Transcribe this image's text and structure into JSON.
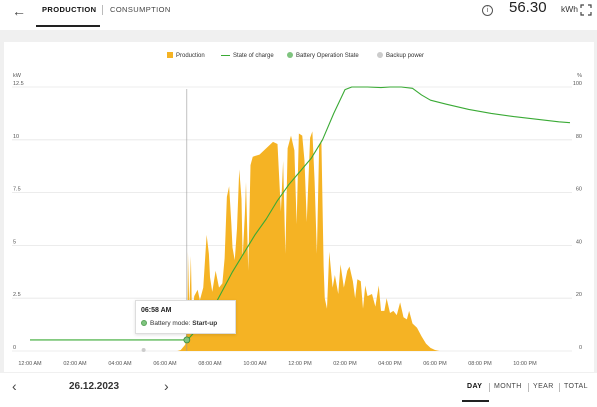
{
  "header": {
    "tabs": [
      {
        "label": "PRODUCTION",
        "active": true
      },
      {
        "label": "CONSUMPTION",
        "active": false
      }
    ],
    "info_icon": "info-icon",
    "total_value": "56.30",
    "total_unit": "kWh"
  },
  "legend": [
    {
      "label": "Production",
      "color": "#f5b324",
      "shape": "square"
    },
    {
      "label": "State of charge",
      "color": "#3aaa35",
      "shape": "line"
    },
    {
      "label": "Battery Operation State",
      "color": "#7fc47f",
      "shape": "dot"
    },
    {
      "label": "Backup power",
      "color": "#cccccc",
      "shape": "dot"
    }
  ],
  "tooltip": {
    "time": "06:58 AM",
    "label": "Battery mode:",
    "value": "Start-up"
  },
  "chart_data": {
    "type": "area",
    "left_axis": {
      "unit": "kW",
      "ticks": [
        "12.5",
        "10",
        "7.5",
        "5",
        "2.5",
        "0"
      ],
      "range": [
        0,
        12.5
      ]
    },
    "right_axis": {
      "unit": "%",
      "ticks": [
        "100",
        "80",
        "60",
        "40",
        "20",
        "0"
      ],
      "range": [
        0,
        100
      ]
    },
    "x_ticks": [
      "12:00 AM",
      "02:00 AM",
      "04:00 AM",
      "06:00 AM",
      "08:00 AM",
      "10:00 AM",
      "12:00 PM",
      "02:00 PM",
      "04:00 PM",
      "06:00 PM",
      "08:00 PM",
      "10:00 PM"
    ],
    "x_range_hours": [
      0,
      24
    ],
    "production_color": "#f5b324",
    "soc_color": "#3aaa35",
    "gridlines": true,
    "cursor_hour": 6.97,
    "series": [
      {
        "name": "Production",
        "unit": "kW",
        "points": [
          [
            6.55,
            0
          ],
          [
            6.7,
            0.05
          ],
          [
            6.9,
            0.3
          ],
          [
            7.0,
            1.5
          ],
          [
            7.02,
            4.7
          ],
          [
            7.08,
            2.0
          ],
          [
            7.15,
            4.5
          ],
          [
            7.2,
            1.6
          ],
          [
            7.3,
            2.6
          ],
          [
            7.45,
            2.9
          ],
          [
            7.55,
            2.4
          ],
          [
            7.7,
            3.0
          ],
          [
            7.85,
            5.5
          ],
          [
            7.95,
            4.6
          ],
          [
            8.0,
            3.5
          ],
          [
            8.1,
            2.8
          ],
          [
            8.25,
            3.8
          ],
          [
            8.4,
            3.0
          ],
          [
            8.55,
            3.2
          ],
          [
            8.65,
            4.4
          ],
          [
            8.75,
            7.3
          ],
          [
            8.85,
            7.8
          ],
          [
            8.95,
            6.0
          ],
          [
            9.0,
            4.9
          ],
          [
            9.1,
            4.3
          ],
          [
            9.2,
            5.8
          ],
          [
            9.3,
            8.6
          ],
          [
            9.4,
            7.2
          ],
          [
            9.45,
            4.4
          ],
          [
            9.55,
            6.5
          ],
          [
            9.6,
            8.0
          ],
          [
            9.7,
            3.8
          ],
          [
            9.8,
            8.8
          ],
          [
            9.9,
            9.2
          ],
          [
            10.2,
            9.3
          ],
          [
            10.5,
            9.6
          ],
          [
            10.8,
            9.9
          ],
          [
            11.0,
            9.8
          ],
          [
            11.15,
            6.6
          ],
          [
            11.25,
            9.0
          ],
          [
            11.35,
            4.6
          ],
          [
            11.45,
            9.6
          ],
          [
            11.6,
            10.2
          ],
          [
            11.75,
            9.5
          ],
          [
            11.85,
            6.0
          ],
          [
            11.95,
            10.3
          ],
          [
            12.1,
            10.2
          ],
          [
            12.2,
            9.0
          ],
          [
            12.3,
            6.1
          ],
          [
            12.45,
            10.1
          ],
          [
            12.55,
            10.4
          ],
          [
            12.65,
            8.0
          ],
          [
            12.75,
            4.6
          ],
          [
            12.85,
            9.7
          ],
          [
            12.95,
            10.0
          ],
          [
            13.05,
            4.0
          ],
          [
            13.1,
            2.5
          ],
          [
            13.2,
            2.0
          ],
          [
            13.3,
            4.7
          ],
          [
            13.45,
            3.0
          ],
          [
            13.55,
            3.6
          ],
          [
            13.7,
            2.7
          ],
          [
            13.8,
            4.1
          ],
          [
            13.95,
            3.0
          ],
          [
            14.1,
            3.8
          ],
          [
            14.2,
            4.0
          ],
          [
            14.35,
            3.3
          ],
          [
            14.45,
            2.5
          ],
          [
            14.55,
            3.4
          ],
          [
            14.7,
            3.3
          ],
          [
            14.8,
            2.0
          ],
          [
            14.9,
            3.1
          ],
          [
            15.0,
            2.6
          ],
          [
            15.2,
            2.7
          ],
          [
            15.35,
            2.1
          ],
          [
            15.5,
            3.1
          ],
          [
            15.6,
            1.9
          ],
          [
            15.75,
            1.9
          ],
          [
            15.85,
            2.5
          ],
          [
            16.0,
            1.8
          ],
          [
            16.15,
            1.9
          ],
          [
            16.3,
            1.7
          ],
          [
            16.45,
            2.3
          ],
          [
            16.6,
            1.6
          ],
          [
            16.75,
            1.5
          ],
          [
            16.85,
            1.9
          ],
          [
            17.0,
            1.3
          ],
          [
            17.2,
            1.1
          ],
          [
            17.4,
            0.7
          ],
          [
            17.6,
            0.35
          ],
          [
            17.8,
            0.15
          ],
          [
            18.0,
            0.05
          ],
          [
            18.2,
            0
          ]
        ]
      },
      {
        "name": "State of charge",
        "unit": "%",
        "points": [
          [
            0,
            4.2
          ],
          [
            7.0,
            4.2
          ],
          [
            7.5,
            9
          ],
          [
            8.0,
            14
          ],
          [
            8.5,
            22
          ],
          [
            9.0,
            30
          ],
          [
            9.5,
            37
          ],
          [
            10.0,
            44
          ],
          [
            10.5,
            50
          ],
          [
            11.0,
            57
          ],
          [
            11.5,
            63
          ],
          [
            12.0,
            68
          ],
          [
            12.5,
            73
          ],
          [
            13.0,
            80
          ],
          [
            13.5,
            90
          ],
          [
            14.0,
            99
          ],
          [
            14.3,
            100
          ],
          [
            15.0,
            100
          ],
          [
            15.6,
            99.8
          ],
          [
            16.0,
            100
          ],
          [
            16.5,
            100
          ],
          [
            17.0,
            99.5
          ],
          [
            17.4,
            97
          ],
          [
            17.8,
            95
          ],
          [
            18.5,
            93.5
          ],
          [
            19.5,
            91.5
          ],
          [
            20.5,
            90
          ],
          [
            21.5,
            88.8
          ],
          [
            22.5,
            87.8
          ],
          [
            23.5,
            86.8
          ],
          [
            24.0,
            86.5
          ]
        ]
      }
    ]
  },
  "footer": {
    "date": "26.12.2023",
    "periods": [
      {
        "label": "DAY",
        "active": true
      },
      {
        "label": "MONTH",
        "active": false
      },
      {
        "label": "YEAR",
        "active": false
      },
      {
        "label": "TOTAL",
        "active": false
      }
    ]
  }
}
